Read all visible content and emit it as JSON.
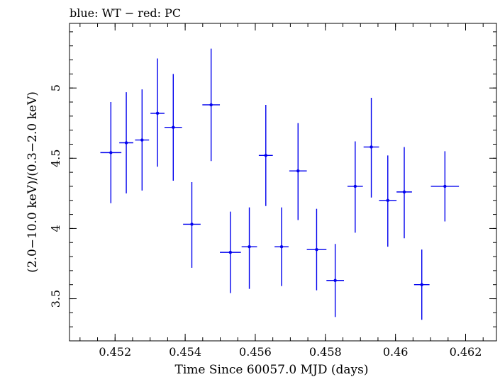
{
  "chart_data": {
    "type": "scatter",
    "title": "blue: WT − red: PC",
    "xlabel": "Time Since 60057.0 MJD (days)",
    "ylabel": "(2.0−10.0 keV)/(0.3−2.0 keV)",
    "xlim": [
      0.4507,
      0.46288
    ],
    "ylim": [
      3.2,
      5.46
    ],
    "xticks": [
      0.452,
      0.454,
      0.456,
      0.458,
      0.46,
      0.462
    ],
    "xtick_labels": [
      "0.452",
      "0.454",
      "0.456",
      "0.458",
      "0.46",
      "0.462"
    ],
    "yticks": [
      3.5,
      4,
      4.5,
      5
    ],
    "ytick_labels": [
      "3.5",
      "4",
      "4.5",
      "5"
    ],
    "x_minor_step": 0.0005,
    "y_minor_step": 0.1,
    "grid": false,
    "series": [
      {
        "color": "#0000ee",
        "points": [
          {
            "x": 0.45188,
            "y": 4.54,
            "xerr": 0.0003,
            "ylo": 4.18,
            "yhi": 4.9
          },
          {
            "x": 0.45232,
            "y": 4.61,
            "xerr": 0.0002,
            "ylo": 4.25,
            "yhi": 4.97
          },
          {
            "x": 0.45277,
            "y": 4.63,
            "xerr": 0.0002,
            "ylo": 4.27,
            "yhi": 4.99
          },
          {
            "x": 0.45321,
            "y": 4.82,
            "xerr": 0.0002,
            "ylo": 4.44,
            "yhi": 5.21
          },
          {
            "x": 0.45366,
            "y": 4.72,
            "xerr": 0.00025,
            "ylo": 4.34,
            "yhi": 5.1
          },
          {
            "x": 0.45419,
            "y": 4.03,
            "xerr": 0.00025,
            "ylo": 3.72,
            "yhi": 4.33
          },
          {
            "x": 0.45474,
            "y": 4.88,
            "xerr": 0.00025,
            "ylo": 4.48,
            "yhi": 5.28
          },
          {
            "x": 0.45529,
            "y": 3.83,
            "xerr": 0.0003,
            "ylo": 3.54,
            "yhi": 4.12
          },
          {
            "x": 0.45583,
            "y": 3.87,
            "xerr": 0.00022,
            "ylo": 3.57,
            "yhi": 4.15
          },
          {
            "x": 0.4563,
            "y": 4.52,
            "xerr": 0.0002,
            "ylo": 4.16,
            "yhi": 4.88
          },
          {
            "x": 0.45675,
            "y": 3.87,
            "xerr": 0.0002,
            "ylo": 3.59,
            "yhi": 4.15
          },
          {
            "x": 0.45722,
            "y": 4.41,
            "xerr": 0.00025,
            "ylo": 4.06,
            "yhi": 4.75
          },
          {
            "x": 0.45775,
            "y": 3.85,
            "xerr": 0.00028,
            "ylo": 3.56,
            "yhi": 4.14
          },
          {
            "x": 0.45828,
            "y": 3.63,
            "xerr": 0.00025,
            "ylo": 3.37,
            "yhi": 3.89
          },
          {
            "x": 0.45885,
            "y": 4.3,
            "xerr": 0.00022,
            "ylo": 3.97,
            "yhi": 4.62
          },
          {
            "x": 0.45931,
            "y": 4.58,
            "xerr": 0.00022,
            "ylo": 4.22,
            "yhi": 4.93
          },
          {
            "x": 0.45978,
            "y": 4.2,
            "xerr": 0.00025,
            "ylo": 3.87,
            "yhi": 4.52
          },
          {
            "x": 0.46025,
            "y": 4.26,
            "xerr": 0.00022,
            "ylo": 3.93,
            "yhi": 4.58
          },
          {
            "x": 0.46075,
            "y": 3.6,
            "xerr": 0.00022,
            "ylo": 3.35,
            "yhi": 3.85
          },
          {
            "x": 0.46141,
            "y": 4.3,
            "xerr": 0.0004,
            "ylo": 4.05,
            "yhi": 4.55
          }
        ]
      }
    ]
  }
}
